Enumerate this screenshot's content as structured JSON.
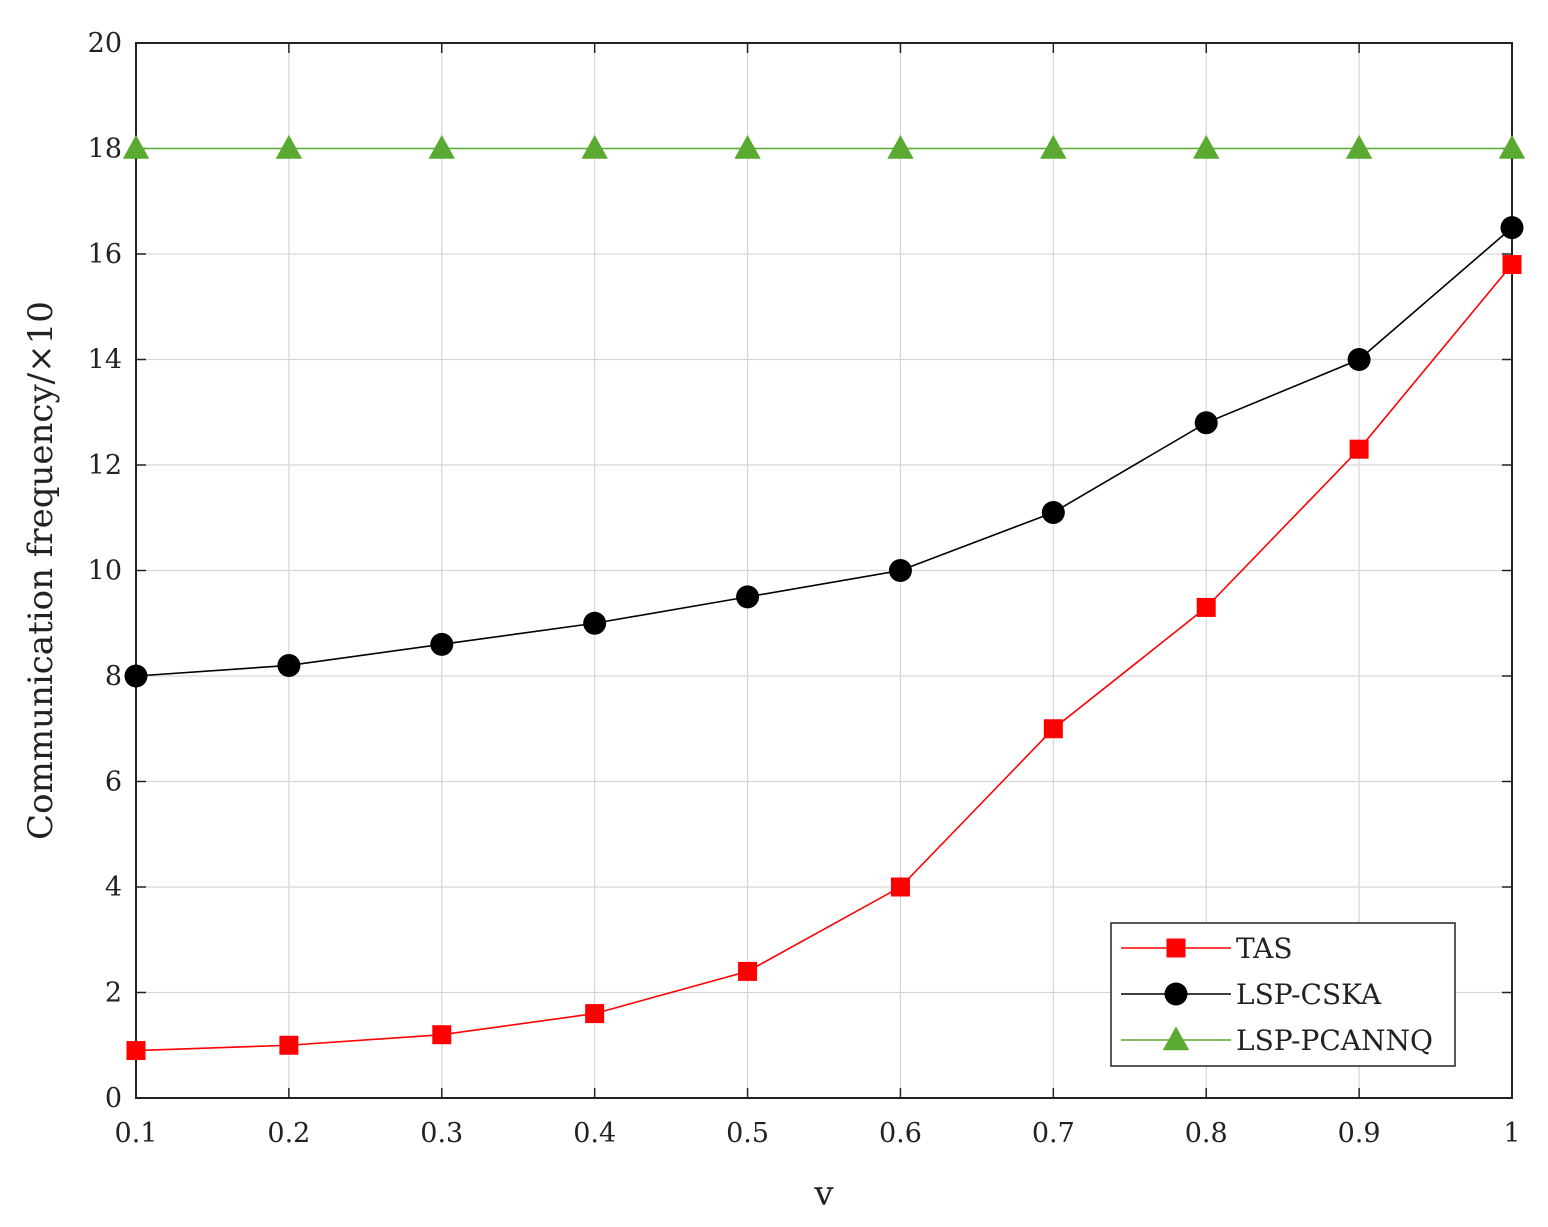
{
  "chart_data": {
    "type": "line",
    "title": "",
    "xlabel": "v",
    "ylabel": "Communication frequency/×10",
    "xlim": [
      0.1,
      1
    ],
    "ylim": [
      0,
      20
    ],
    "xticks": [
      0.1,
      0.2,
      0.3,
      0.4,
      0.5,
      0.6,
      0.7,
      0.8,
      0.9,
      1
    ],
    "xtick_labels": [
      "0.1",
      "0.2",
      "0.3",
      "0.4",
      "0.5",
      "0.6",
      "0.7",
      "0.8",
      "0.9",
      "1"
    ],
    "yticks": [
      0,
      2,
      4,
      6,
      8,
      10,
      12,
      14,
      16,
      18,
      20
    ],
    "ytick_labels": [
      "0",
      "2",
      "4",
      "6",
      "8",
      "10",
      "12",
      "14",
      "16",
      "18",
      "20"
    ],
    "grid": true,
    "legend_position": "bottom-right",
    "x": [
      0.1,
      0.2,
      0.3,
      0.4,
      0.5,
      0.6,
      0.7,
      0.8,
      0.9,
      1
    ],
    "series": [
      {
        "name": "TAS",
        "color": "#ff0000",
        "marker": "square",
        "values": [
          0.9,
          1.0,
          1.2,
          1.6,
          2.4,
          4.0,
          7.0,
          9.3,
          12.3,
          15.8
        ]
      },
      {
        "name": "LSP-CSKA",
        "color": "#000000",
        "marker": "circle",
        "values": [
          8.0,
          8.2,
          8.6,
          9.0,
          9.5,
          10.0,
          11.1,
          12.8,
          14.0,
          16.5
        ]
      },
      {
        "name": "LSP-PCANNQ",
        "color": "#5aaa32",
        "marker": "triangle",
        "values": [
          18,
          18,
          18,
          18,
          18,
          18,
          18,
          18,
          18,
          18
        ]
      }
    ]
  }
}
